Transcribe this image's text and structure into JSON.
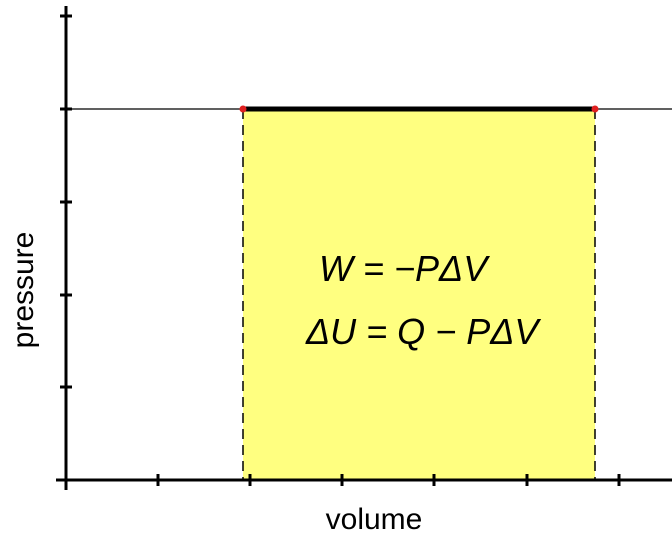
{
  "diagram": {
    "x_axis_label": "volume",
    "y_axis_label": "pressure",
    "equations": {
      "work": "W = −PΔV",
      "first_law": "ΔU = Q − PΔV"
    },
    "colors": {
      "work_area_fill": "#ffff80",
      "process_line": "#000000",
      "state_point": "#e02020",
      "axis": "#000000"
    }
  }
}
